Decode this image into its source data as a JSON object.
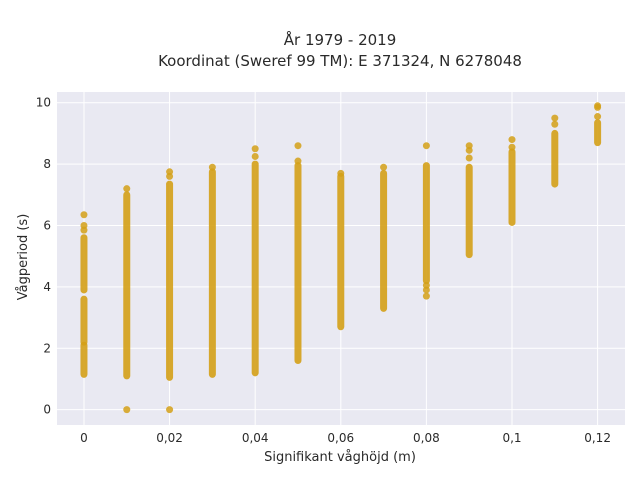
{
  "chart_data": {
    "type": "scatter",
    "title": "År 1979 - 2019",
    "subtitle": "Koordinat (Sweref 99 TM): E 371324, N 6278048",
    "xlabel": "Signifikant våghöjd (m)",
    "ylabel": "Vågperiod (s)",
    "xlim": [
      -0.0063,
      0.1264
    ],
    "ylim": [
      -0.5,
      10.35
    ],
    "x_ticks": [
      0,
      0.02,
      0.04,
      0.06,
      0.08,
      0.1,
      0.12
    ],
    "x_tick_labels": [
      "0",
      "0,02",
      "0,04",
      "0,06",
      "0,08",
      "0,1",
      "0,12"
    ],
    "y_ticks": [
      0,
      2,
      4,
      6,
      8,
      10
    ],
    "y_tick_labels": [
      "0",
      "2",
      "4",
      "6",
      "8",
      "10"
    ],
    "grid": true,
    "marker_color": "#d4a017",
    "plot_background": "#e9e9f2",
    "columns": [
      {
        "x": 0,
        "ranges": [
          [
            1.15,
            2.1
          ],
          [
            2.2,
            3.6
          ],
          [
            3.9,
            5.6
          ]
        ],
        "points": [
          5.85,
          6.0,
          6.35
        ]
      },
      {
        "x": 0.01,
        "ranges": [
          [
            1.1,
            7.0
          ]
        ],
        "points": [
          0.0,
          7.2
        ]
      },
      {
        "x": 0.02,
        "ranges": [
          [
            1.05,
            7.35
          ]
        ],
        "points": [
          0.0,
          7.6,
          7.75
        ]
      },
      {
        "x": 0.03,
        "ranges": [
          [
            1.15,
            7.75
          ]
        ],
        "points": [
          7.9
        ]
      },
      {
        "x": 0.04,
        "ranges": [
          [
            1.2,
            8.0
          ]
        ],
        "points": [
          8.25,
          8.5
        ]
      },
      {
        "x": 0.05,
        "ranges": [
          [
            1.6,
            7.95
          ]
        ],
        "points": [
          8.1,
          8.6
        ]
      },
      {
        "x": 0.06,
        "ranges": [
          [
            2.7,
            7.6
          ]
        ],
        "points": [
          7.7
        ]
      },
      {
        "x": 0.07,
        "ranges": [
          [
            3.3,
            7.7
          ]
        ],
        "points": [
          7.9
        ]
      },
      {
        "x": 0.08,
        "ranges": [
          [
            4.2,
            7.95
          ]
        ],
        "points": [
          3.7,
          3.9,
          4.05,
          8.6
        ]
      },
      {
        "x": 0.09,
        "ranges": [
          [
            5.05,
            7.9
          ]
        ],
        "points": [
          8.2,
          8.45,
          8.6
        ]
      },
      {
        "x": 0.1,
        "ranges": [
          [
            6.1,
            8.4
          ]
        ],
        "points": [
          8.55,
          8.8
        ]
      },
      {
        "x": 0.11,
        "ranges": [
          [
            7.35,
            9.0
          ]
        ],
        "points": [
          9.3,
          9.5
        ]
      },
      {
        "x": 0.12,
        "ranges": [
          [
            8.7,
            9.35
          ]
        ],
        "points": [
          9.55,
          9.85,
          9.9
        ]
      }
    ]
  }
}
